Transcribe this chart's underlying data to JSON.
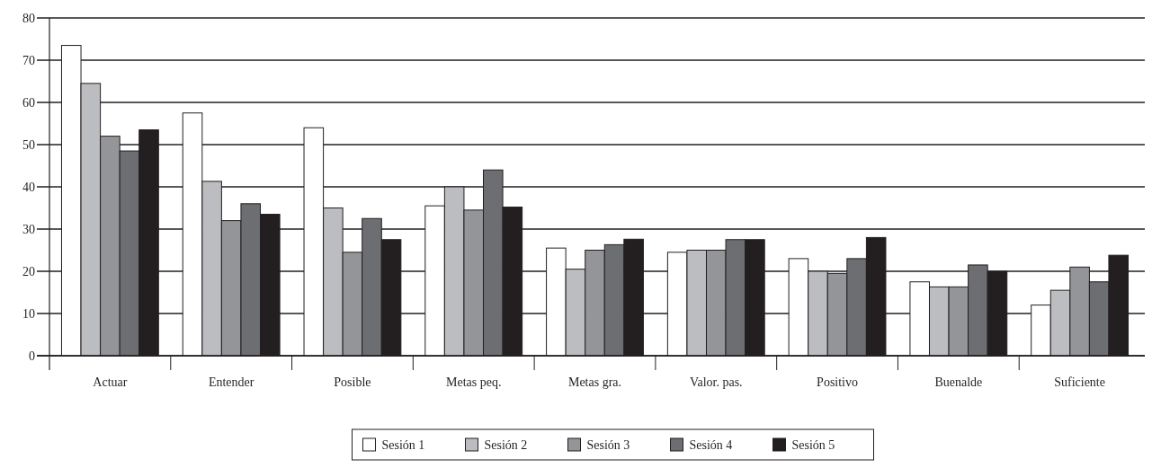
{
  "chart_data": {
    "type": "bar",
    "categories": [
      "Actuar",
      "Entender",
      "Posible",
      "Metas peq.",
      "Metas gra.",
      "Valor. pas.",
      "Positivo",
      "Buenalde",
      "Suficiente"
    ],
    "series": [
      {
        "name": "Sesión 1",
        "color": "#ffffff",
        "values": [
          73.5,
          57.5,
          54,
          35.5,
          25.5,
          24.5,
          23,
          17.5,
          12
        ]
      },
      {
        "name": "Sesión 2",
        "color": "#bcbdc0",
        "values": [
          64.5,
          41.3,
          35,
          40,
          20.5,
          25,
          20,
          16.3,
          15.5
        ]
      },
      {
        "name": "Sesión 3",
        "color": "#939598",
        "values": [
          52,
          32,
          24.5,
          34.5,
          25,
          25,
          19.5,
          16.3,
          21
        ]
      },
      {
        "name": "Sesión 4",
        "color": "#6d6e71",
        "values": [
          48.5,
          36,
          32.5,
          44,
          26.3,
          27.5,
          23,
          21.5,
          17.5
        ]
      },
      {
        "name": "Sesión 5",
        "color": "#231f20",
        "values": [
          53.5,
          33.5,
          27.5,
          35.2,
          27.6,
          27.5,
          28,
          20,
          23.8
        ]
      }
    ],
    "ylim": [
      0,
      80
    ],
    "yticks": [
      0,
      10,
      20,
      30,
      40,
      50,
      60,
      70,
      80
    ],
    "grid": "y",
    "legend": "bottom"
  }
}
